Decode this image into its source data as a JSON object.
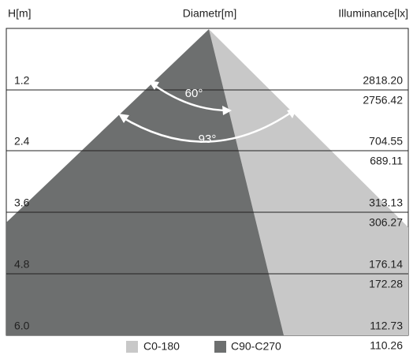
{
  "header": {
    "height": "H[m]",
    "diameter": "Diametr[m]",
    "illuminance": "Illuminance[lx]"
  },
  "rows": [
    {
      "h": "1.2",
      "c0": "2818.20",
      "c90": "2756.42"
    },
    {
      "h": "2.4",
      "c0": "704.55",
      "c90": "689.11"
    },
    {
      "h": "3.6",
      "c0": "313.13",
      "c90": "306.27"
    },
    {
      "h": "4.8",
      "c0": "176.14",
      "c90": "172.28"
    },
    {
      "h": "6.0",
      "c0": "112.73",
      "c90": "110.26"
    }
  ],
  "angles": {
    "inner": "60°",
    "outer": "93°"
  },
  "legend": {
    "c0": "C0-180",
    "c90": "C90-C270"
  }
}
